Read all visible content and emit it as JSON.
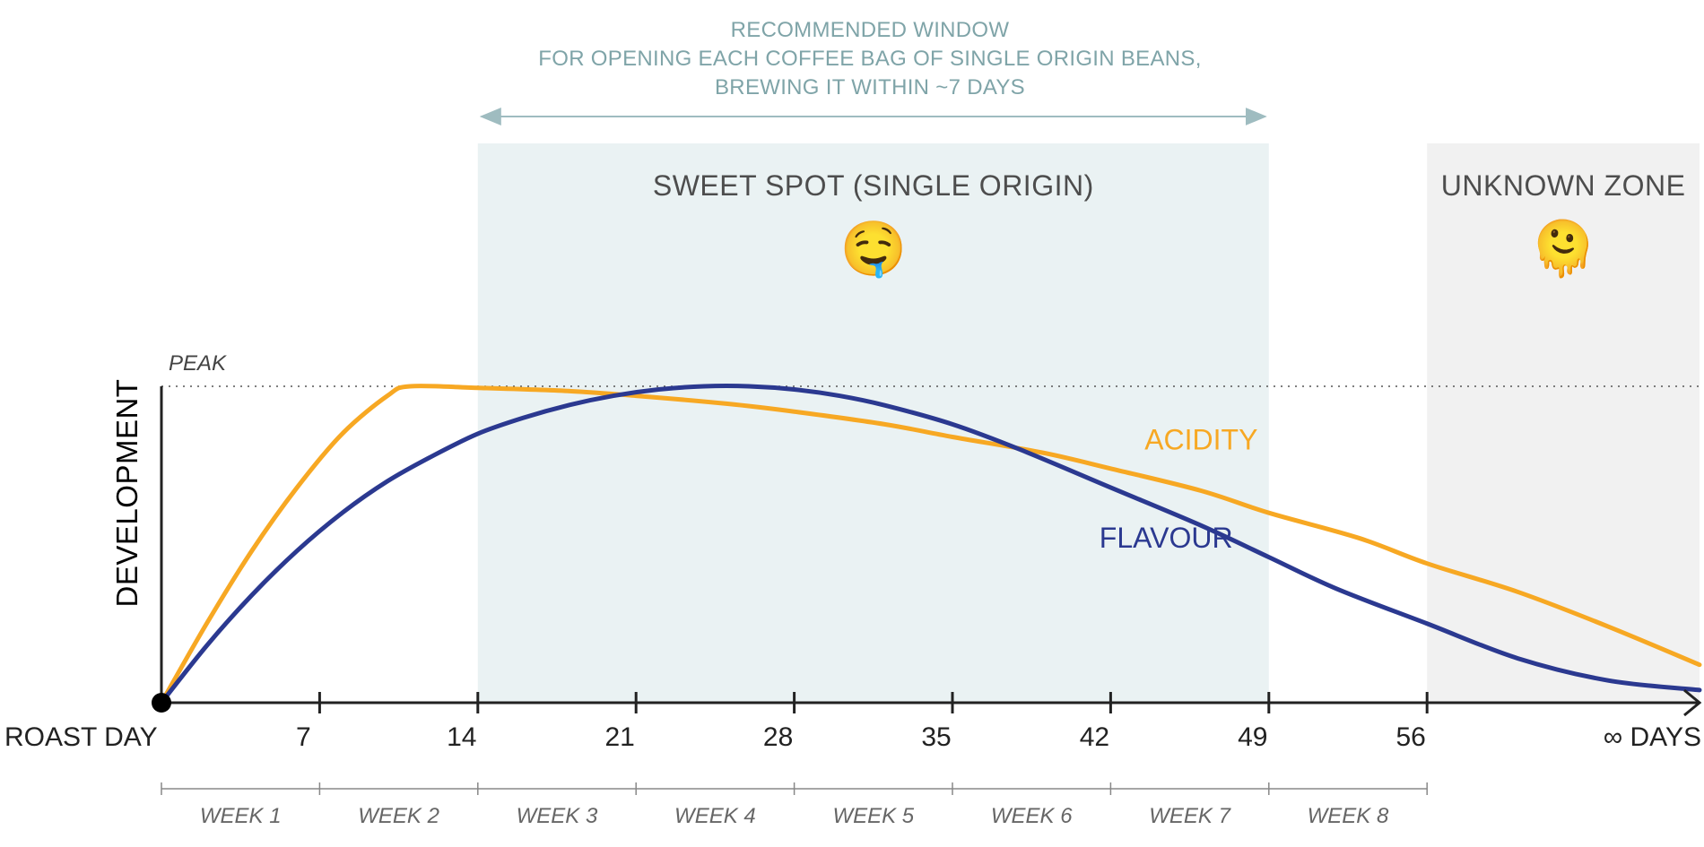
{
  "header": {
    "lines": [
      "RECOMMENDED WINDOW",
      "FOR OPENING EACH COFFEE BAG OF SINGLE ORIGIN BEANS,",
      "BREWING IT WITHIN ~7 DAYS"
    ]
  },
  "chart_data": {
    "type": "line",
    "ylabel": "DEVELOPMENT",
    "peak_label": "PEAK",
    "x_axis": {
      "start_label": "ROAST DAY",
      "end_label": "∞ DAYS",
      "ticks": [
        7,
        14,
        21,
        28,
        35,
        42,
        49,
        56
      ],
      "range": [
        0,
        68
      ]
    },
    "y_range": [
      0,
      1
    ],
    "weeks": [
      "WEEK 1",
      "WEEK 2",
      "WEEK 3",
      "WEEK 4",
      "WEEK 5",
      "WEEK 6",
      "WEEK 7",
      "WEEK 8"
    ],
    "zones": [
      {
        "label": "SWEET SPOT (SINGLE ORIGIN)",
        "emoji": "🤤",
        "x_start": 14,
        "x_end": 49,
        "color": "#eaf2f3"
      },
      {
        "label": "UNKNOWN ZONE",
        "emoji": "🫠",
        "x_start": 56,
        "x_end": 68,
        "color": "#f1f1f1"
      }
    ],
    "recommended_window": [
      14,
      49
    ],
    "series": [
      {
        "name": "ACIDITY",
        "color": "#f7a823",
        "x": [
          0,
          2,
          4,
          6,
          8,
          10,
          11,
          14,
          18,
          21,
          25,
          28,
          32,
          35,
          39,
          42,
          46,
          49,
          53,
          56,
          60,
          64,
          68
        ],
        "y": [
          0,
          0.25,
          0.48,
          0.68,
          0.85,
          0.97,
          1.0,
          0.995,
          0.985,
          0.97,
          0.945,
          0.92,
          0.88,
          0.84,
          0.79,
          0.74,
          0.67,
          0.6,
          0.52,
          0.44,
          0.35,
          0.24,
          0.12
        ]
      },
      {
        "name": "FLAVOUR",
        "color": "#2b3990",
        "x": [
          0,
          2,
          4,
          6,
          8,
          10,
          12,
          14,
          16,
          18,
          20,
          22,
          24,
          26,
          28,
          30,
          32,
          35,
          38,
          42,
          46,
          49,
          52,
          56,
          60,
          64,
          68
        ],
        "y": [
          0,
          0.18,
          0.34,
          0.48,
          0.6,
          0.7,
          0.78,
          0.85,
          0.9,
          0.94,
          0.97,
          0.99,
          1.0,
          1.0,
          0.99,
          0.97,
          0.94,
          0.88,
          0.8,
          0.68,
          0.56,
          0.46,
          0.36,
          0.25,
          0.14,
          0.07,
          0.04
        ]
      }
    ]
  }
}
